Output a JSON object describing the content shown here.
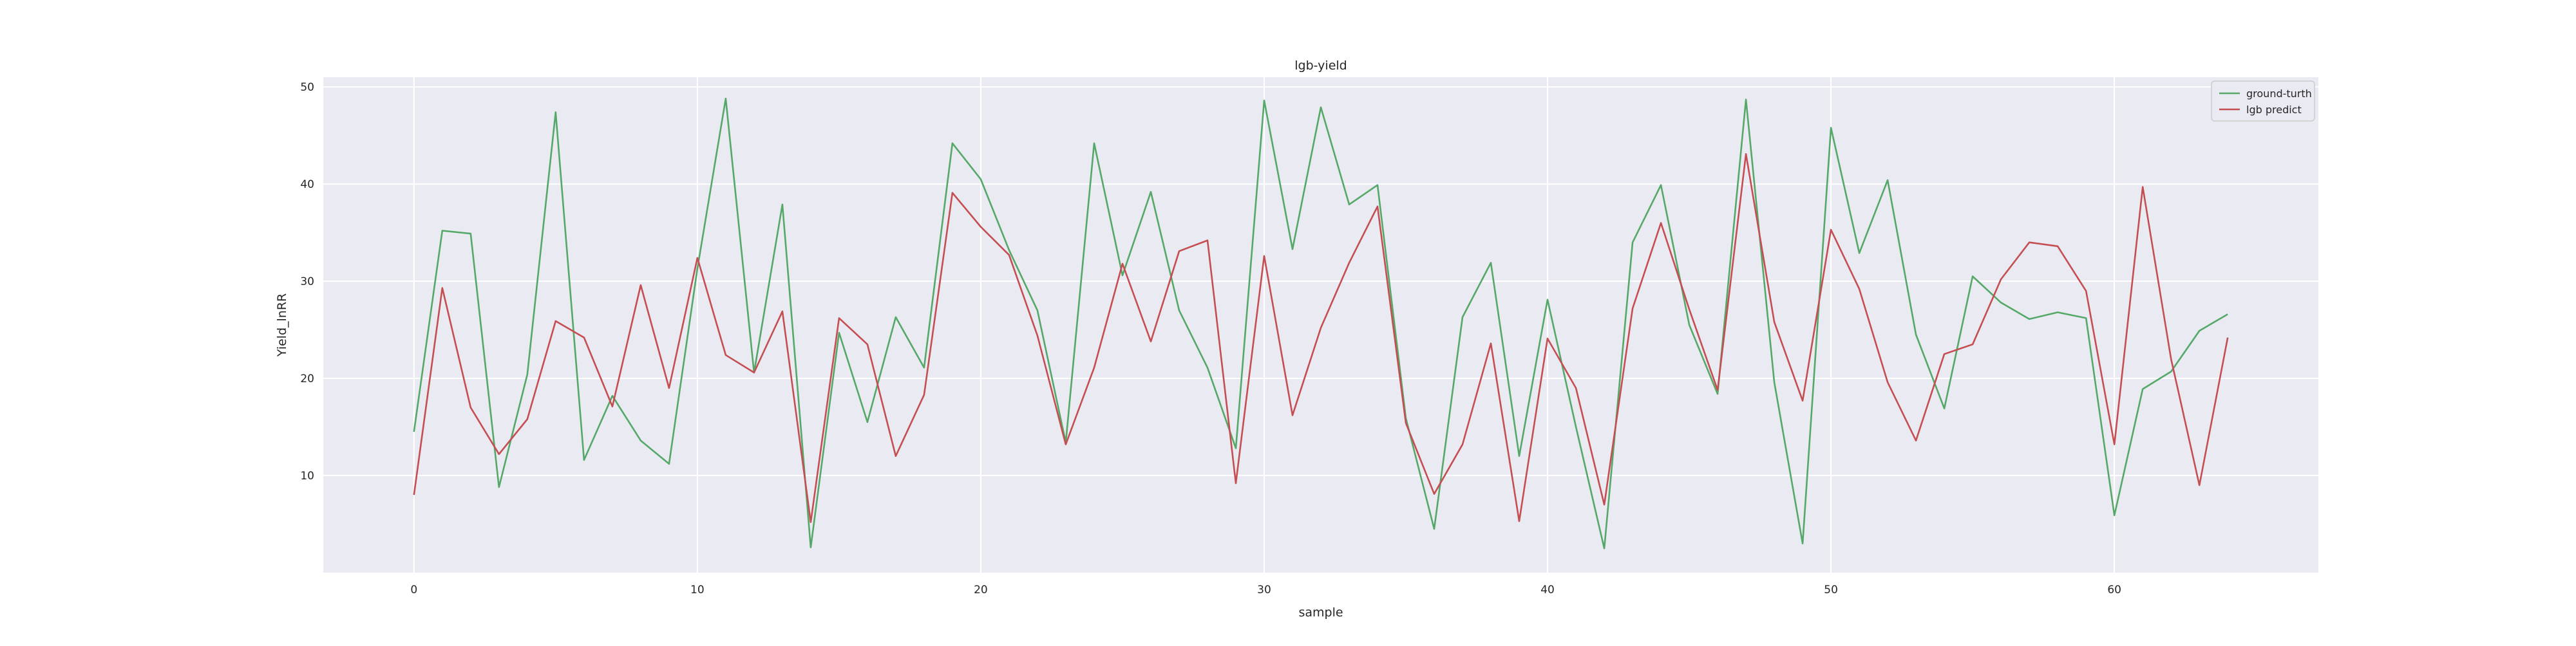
{
  "chart_data": {
    "type": "line",
    "title": "lgb-yield",
    "xlabel": "sample",
    "ylabel": "Yield_lnRR",
    "xlim": [
      -3.2,
      67.2
    ],
    "ylim": [
      0,
      51
    ],
    "x_ticks": [
      0,
      10,
      20,
      30,
      40,
      50,
      60
    ],
    "y_ticks": [
      10,
      20,
      30,
      40,
      50
    ],
    "grid": true,
    "legend_position": "top-right",
    "background_color": "#eaeaf2",
    "grid_color": "#ffffff",
    "x": [
      0,
      1,
      2,
      3,
      4,
      5,
      6,
      7,
      8,
      9,
      10,
      11,
      12,
      13,
      14,
      15,
      16,
      17,
      18,
      19,
      20,
      21,
      22,
      23,
      24,
      25,
      26,
      27,
      28,
      29,
      30,
      31,
      32,
      33,
      34,
      35,
      36,
      37,
      38,
      39,
      40,
      41,
      42,
      43,
      44,
      45,
      46,
      47,
      48,
      49,
      50,
      51,
      52,
      53,
      54,
      55,
      56,
      57,
      58,
      59,
      60,
      61,
      62,
      63,
      64
    ],
    "series": [
      {
        "name": "ground-turth",
        "color": "#55a868",
        "values": [
          14.5,
          35.2,
          34.9,
          8.8,
          20.4,
          47.4,
          11.6,
          18.2,
          13.6,
          11.2,
          31.3,
          48.8,
          20.6,
          37.9,
          2.6,
          24.7,
          15.5,
          26.3,
          21.1,
          44.2,
          40.5,
          33.2,
          27.0,
          13.4,
          44.2,
          30.6,
          39.2,
          27.0,
          21.1,
          12.8,
          48.6,
          33.3,
          47.9,
          37.9,
          39.9,
          15.9,
          4.5,
          26.3,
          31.9,
          12.0,
          28.1,
          15.0,
          2.5,
          34.0,
          39.9,
          25.5,
          18.4,
          48.7,
          19.6,
          3.0,
          45.8,
          32.9,
          40.4,
          24.5,
          16.9,
          30.5,
          27.8,
          26.1,
          26.8,
          26.2,
          5.9,
          18.9,
          20.7,
          24.9,
          26.6
        ]
      },
      {
        "name": "lgb predict",
        "color": "#c44e52",
        "values": [
          8.0,
          29.3,
          17.0,
          12.2,
          15.8,
          25.9,
          24.2,
          17.1,
          29.6,
          19.0,
          32.4,
          22.4,
          20.6,
          26.9,
          5.2,
          26.2,
          23.5,
          12.0,
          18.3,
          39.1,
          35.6,
          32.7,
          24.4,
          13.2,
          21.1,
          31.8,
          23.8,
          33.1,
          34.2,
          9.2,
          32.6,
          16.2,
          25.2,
          31.9,
          37.7,
          15.4,
          8.1,
          13.2,
          23.6,
          5.3,
          24.1,
          19.0,
          7.0,
          27.2,
          36.0,
          27.1,
          18.8,
          43.1,
          25.8,
          17.7,
          35.3,
          29.2,
          19.6,
          13.6,
          22.5,
          23.5,
          30.2,
          34.0,
          33.6,
          29.0,
          13.2,
          39.7,
          22.0,
          9.0,
          24.2
        ]
      }
    ]
  }
}
